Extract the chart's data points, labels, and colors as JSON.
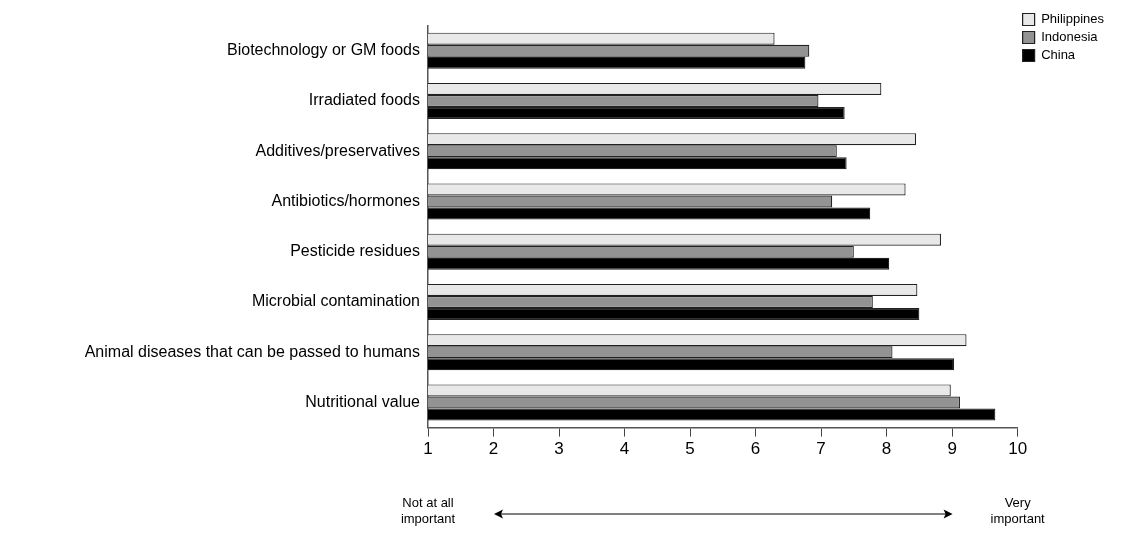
{
  "chart_data": {
    "type": "bar",
    "orientation": "horizontal",
    "categories": [
      "Biotechnology or GM foods",
      "Irradiated foods",
      "Additives/preservatives",
      "Antibiotics/hormones",
      "Pesticide residues",
      "Microbial contamination",
      "Animal diseases that can be passed to humans",
      "Nutritional value"
    ],
    "series": [
      {
        "name": "Philippines",
        "color": "#e8e8e8",
        "values": [
          6.29,
          7.92,
          8.45,
          8.29,
          8.83,
          8.47,
          9.22,
          8.98
        ]
      },
      {
        "name": "Indonesia",
        "color": "#939393",
        "values": [
          6.82,
          6.96,
          7.24,
          7.17,
          7.5,
          7.79,
          8.09,
          9.12
        ]
      },
      {
        "name": "China",
        "color": "#000000",
        "values": [
          6.76,
          7.36,
          7.39,
          7.75,
          8.04,
          8.5,
          9.03,
          9.66
        ]
      }
    ],
    "xlim": [
      1,
      10
    ],
    "xticks": [
      1,
      2,
      3,
      4,
      5,
      6,
      7,
      8,
      9,
      10
    ],
    "grid": false,
    "legend": "top right",
    "annotations": [
      "Not at all important",
      "Very important"
    ]
  }
}
